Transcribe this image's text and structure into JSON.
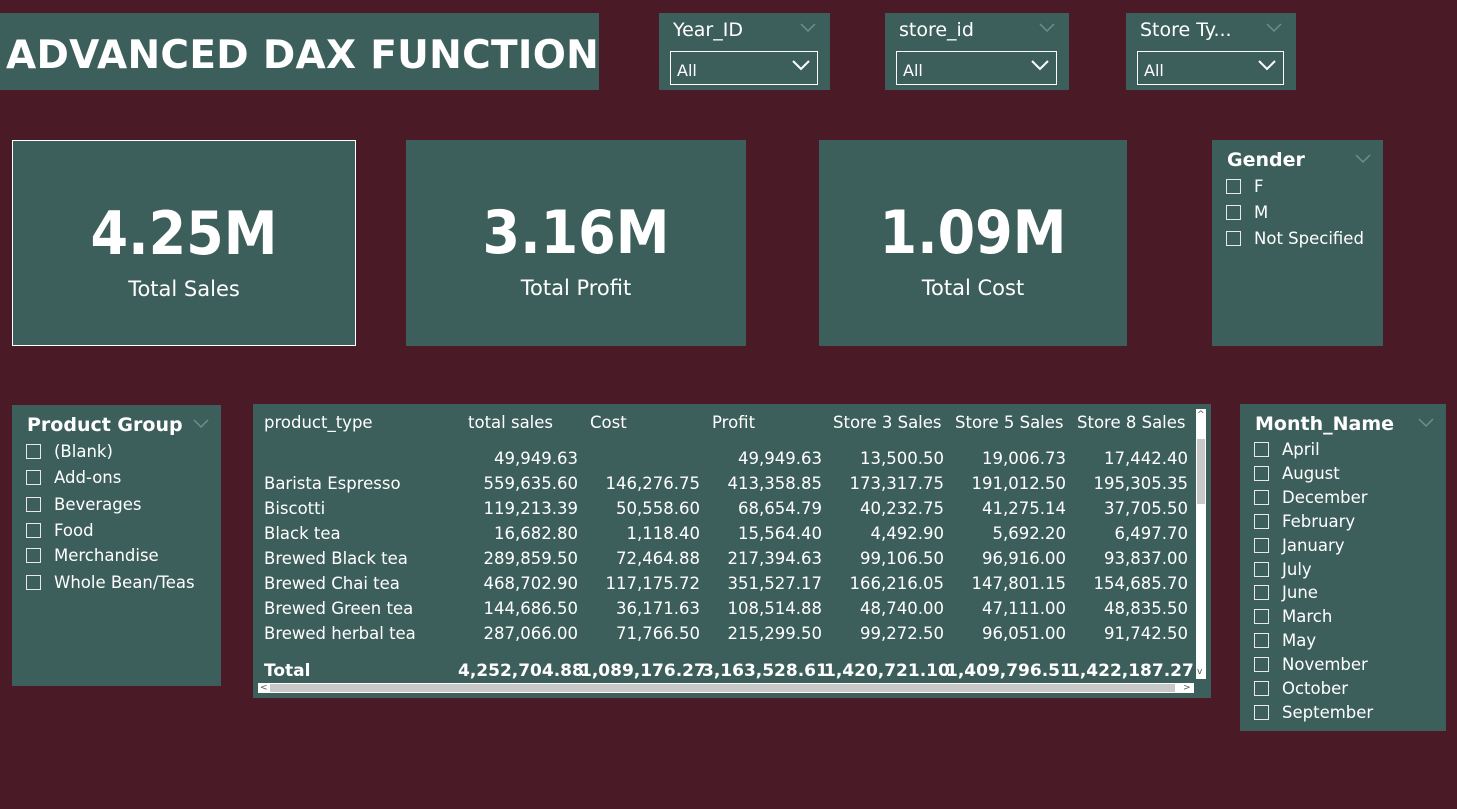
{
  "title": "ADVANCED DAX FUNCTION",
  "slicers": [
    {
      "label": "Year_ID",
      "value": "All"
    },
    {
      "label": "store_id",
      "value": "All"
    },
    {
      "label": "Store Ty...",
      "value": "All"
    }
  ],
  "kpis": [
    {
      "value": "4.25M",
      "label": "Total Sales"
    },
    {
      "value": "3.16M",
      "label": "Total Profit"
    },
    {
      "value": "1.09M",
      "label": "Total Cost"
    }
  ],
  "gender": {
    "label": "Gender",
    "options": [
      "F",
      "M",
      "Not Specified"
    ]
  },
  "product_group": {
    "label": "Product Group",
    "options": [
      "(Blank)",
      "Add-ons",
      "Beverages",
      "Food",
      "Merchandise",
      "Whole Bean/Teas"
    ]
  },
  "month": {
    "label": "Month_Name",
    "options": [
      "April",
      "August",
      "December",
      "February",
      "January",
      "July",
      "June",
      "March",
      "May",
      "November",
      "October",
      "September"
    ]
  },
  "table": {
    "columns": [
      "product_type",
      "total sales",
      "Cost",
      "Profit",
      "Store 3 Sales",
      "Store 5 Sales",
      "Store 8 Sales"
    ],
    "rows": [
      [
        "",
        "49,949.63",
        "",
        "49,949.63",
        "13,500.50",
        "19,006.73",
        "17,442.40"
      ],
      [
        "Barista Espresso",
        "559,635.60",
        "146,276.75",
        "413,358.85",
        "173,317.75",
        "191,012.50",
        "195,305.35"
      ],
      [
        "Biscotti",
        "119,213.39",
        "50,558.60",
        "68,654.79",
        "40,232.75",
        "41,275.14",
        "37,705.50"
      ],
      [
        "Black tea",
        "16,682.80",
        "1,118.40",
        "15,564.40",
        "4,492.90",
        "5,692.20",
        "6,497.70"
      ],
      [
        "Brewed Black tea",
        "289,859.50",
        "72,464.88",
        "217,394.63",
        "99,106.50",
        "96,916.00",
        "93,837.00"
      ],
      [
        "Brewed Chai tea",
        "468,702.90",
        "117,175.72",
        "351,527.17",
        "166,216.05",
        "147,801.15",
        "154,685.70"
      ],
      [
        "Brewed Green tea",
        "144,686.50",
        "36,171.63",
        "108,514.88",
        "48,740.00",
        "47,111.00",
        "48,835.50"
      ],
      [
        "Brewed herbal tea",
        "287,066.00",
        "71,766.50",
        "215,299.50",
        "99,272.50",
        "96,051.00",
        "91,742.50"
      ]
    ],
    "total": [
      "Total",
      "4,252,704.88",
      "1,089,176.27",
      "3,163,528.61",
      "1,420,721.10",
      "1,409,796.51",
      "1,422,187.27"
    ]
  }
}
